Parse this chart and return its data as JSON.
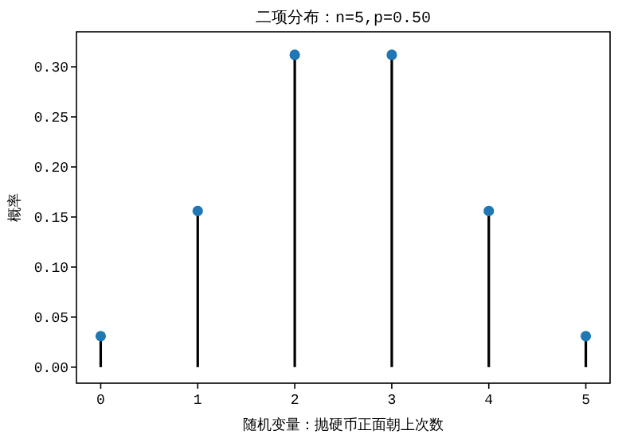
{
  "chart_data": {
    "type": "lollipop",
    "title": "二项分布：n=5,p=0.50",
    "xlabel": "随机变量：抛硬币正面朝上次数",
    "ylabel": "概率",
    "x": [
      0,
      1,
      2,
      3,
      4,
      5
    ],
    "series": [
      {
        "color": "#1f77b4",
        "values": [
          0.031,
          0.156,
          0.312,
          0.312,
          0.156,
          0.031
        ]
      }
    ],
    "marker": "circle",
    "xlim": [
      -0.25,
      5.25
    ],
    "xticks": [
      0,
      1,
      2,
      3,
      4,
      5
    ],
    "ylim": [
      -0.016,
      0.335
    ],
    "yticks": [
      {
        "value": 0,
        "label": "0.00"
      },
      {
        "value": 0.05,
        "label": "0.05"
      },
      {
        "value": 0.1,
        "label": "0.10"
      },
      {
        "value": 0.15,
        "label": "0.15"
      },
      {
        "value": 0.2,
        "label": "0.20"
      },
      {
        "value": 0.25,
        "label": "0.25"
      },
      {
        "value": 0.3,
        "label": "0.30"
      }
    ]
  }
}
